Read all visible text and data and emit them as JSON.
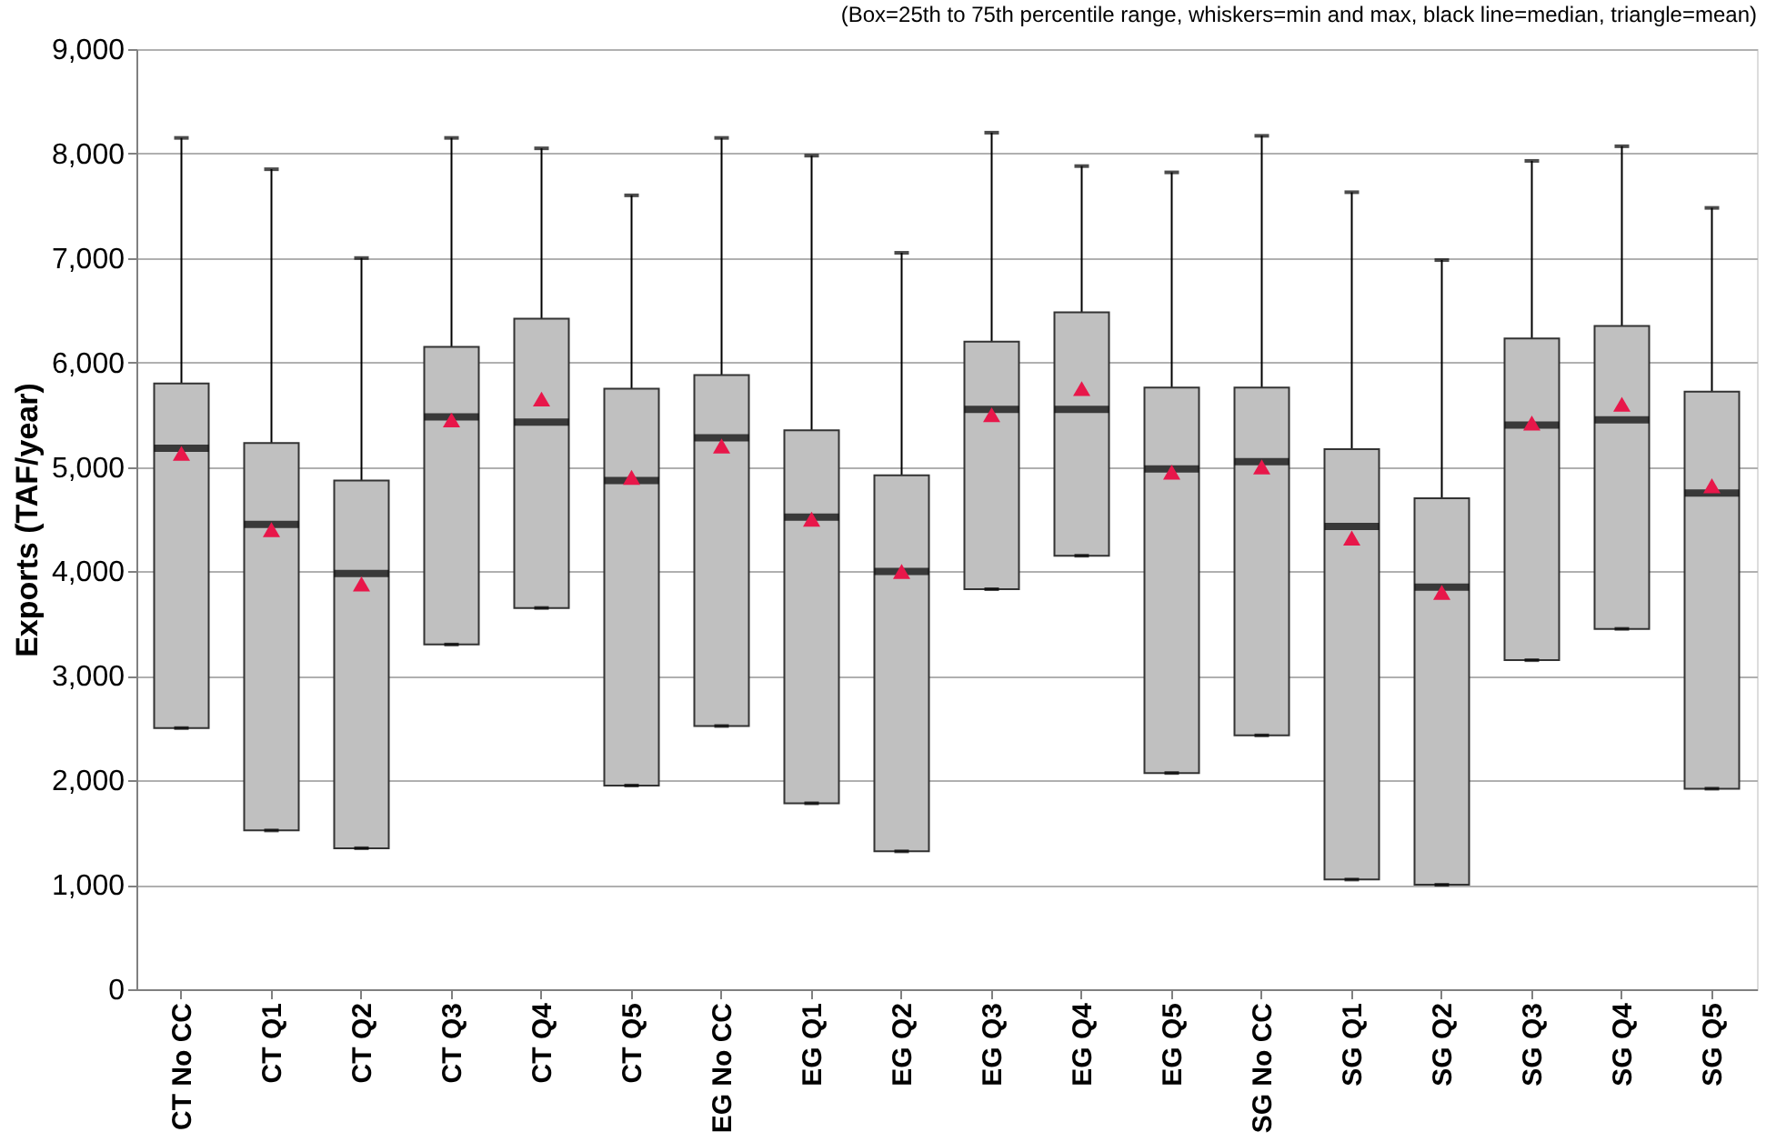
{
  "chart_data": {
    "type": "box",
    "title": "(Box=25th to 75th percentile range, whiskers=min and max, black line=median, triangle=mean)",
    "ylabel": "Exports (TAF/year)",
    "categories": [
      "CT No CC",
      "CT Q1",
      "CT Q2",
      "CT Q3",
      "CT Q4",
      "CT Q5",
      "EG No CC",
      "EG Q1",
      "EG Q2",
      "EG Q3",
      "EG Q4",
      "EG Q5",
      "SG No CC",
      "SG Q1",
      "SG Q2",
      "SG Q3",
      "SG Q4",
      "SG Q5"
    ],
    "color": "#c0c0c0",
    "boxes": [
      {
        "low": 2500,
        "q1": 2500,
        "median": 5180,
        "q3": 5800,
        "high": 8150,
        "mean": 5130
      },
      {
        "low": 1520,
        "q1": 1520,
        "median": 4450,
        "q3": 5230,
        "high": 7850,
        "mean": 4400
      },
      {
        "low": 1350,
        "q1": 1350,
        "median": 3980,
        "q3": 4870,
        "high": 7000,
        "mean": 3880
      },
      {
        "low": 3300,
        "q1": 3300,
        "median": 5480,
        "q3": 6150,
        "high": 8150,
        "mean": 5450
      },
      {
        "low": 3650,
        "q1": 3650,
        "median": 5430,
        "q3": 6420,
        "high": 8050,
        "mean": 5650
      },
      {
        "low": 1950,
        "q1": 1950,
        "median": 4870,
        "q3": 5750,
        "high": 7600,
        "mean": 4900
      },
      {
        "low": 2520,
        "q1": 2520,
        "median": 5280,
        "q3": 5880,
        "high": 8150,
        "mean": 5200
      },
      {
        "low": 1780,
        "q1": 1780,
        "median": 4520,
        "q3": 5350,
        "high": 7980,
        "mean": 4500
      },
      {
        "low": 1320,
        "q1": 1320,
        "median": 4000,
        "q3": 4920,
        "high": 7050,
        "mean": 4000
      },
      {
        "low": 3830,
        "q1": 3830,
        "median": 5550,
        "q3": 6200,
        "high": 8200,
        "mean": 5500
      },
      {
        "low": 4150,
        "q1": 4150,
        "median": 5550,
        "q3": 6480,
        "high": 7880,
        "mean": 5750
      },
      {
        "low": 2070,
        "q1": 2070,
        "median": 4980,
        "q3": 5760,
        "high": 7820,
        "mean": 4950
      },
      {
        "low": 2430,
        "q1": 2430,
        "median": 5050,
        "q3": 5760,
        "high": 8170,
        "mean": 5000
      },
      {
        "low": 1050,
        "q1": 1050,
        "median": 4430,
        "q3": 5170,
        "high": 7630,
        "mean": 4320
      },
      {
        "low": 1000,
        "q1": 1000,
        "median": 3850,
        "q3": 4700,
        "high": 6980,
        "mean": 3800
      },
      {
        "low": 3150,
        "q1": 3150,
        "median": 5400,
        "q3": 6230,
        "high": 7930,
        "mean": 5420
      },
      {
        "low": 3450,
        "q1": 3450,
        "median": 5450,
        "q3": 6350,
        "high": 8070,
        "mean": 5600
      },
      {
        "low": 1920,
        "q1": 1920,
        "median": 4750,
        "q3": 5720,
        "high": 7480,
        "mean": 4820
      }
    ],
    "ylim": [
      0,
      9000
    ],
    "yticks": [
      0,
      {
        "value": 1000,
        "label": "1,000"
      },
      {
        "value": 2000,
        "label": "2,000"
      },
      {
        "value": 3000,
        "label": "3,000"
      },
      {
        "value": 4000,
        "label": "4,000"
      },
      {
        "value": 5000,
        "label": "5,000"
      },
      {
        "value": 6000,
        "label": "6,000"
      },
      {
        "value": 7000,
        "label": "7,000"
      },
      {
        "value": 8000,
        "label": "8,000"
      },
      {
        "value": 9000,
        "label": "9,000"
      }
    ],
    "grid": "y",
    "marker": "triangle"
  }
}
